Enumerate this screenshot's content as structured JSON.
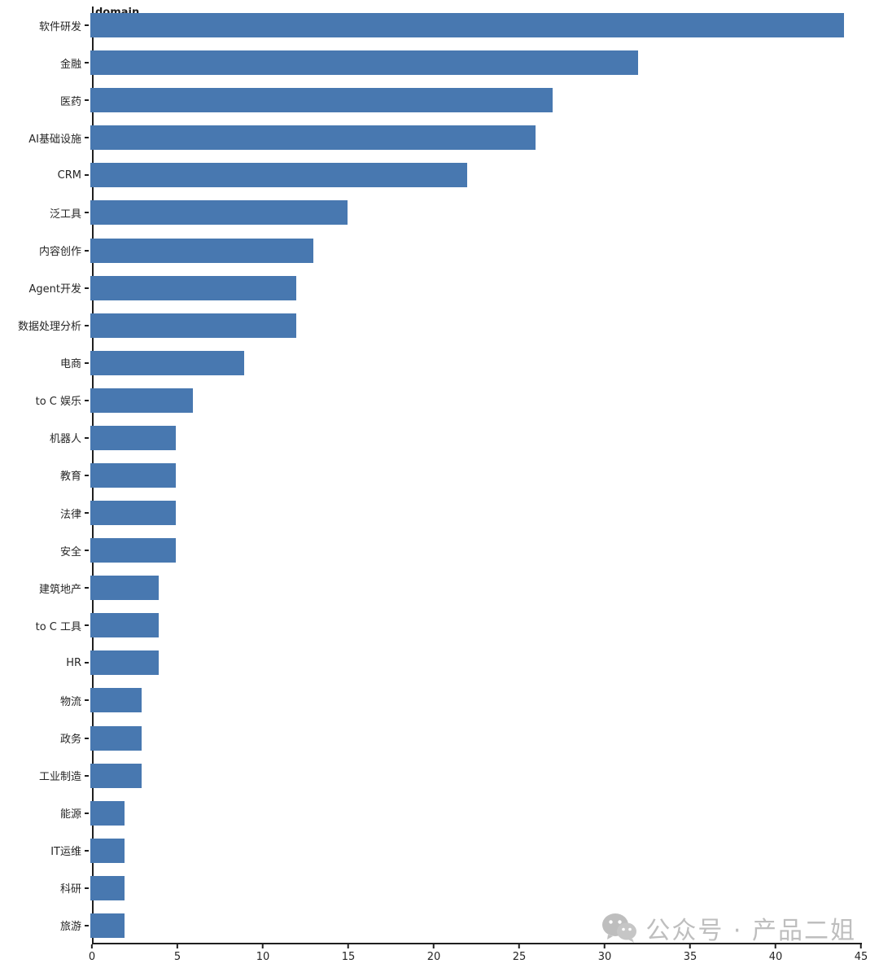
{
  "chart_data": {
    "type": "bar",
    "orientation": "horizontal",
    "title": "domain",
    "categories": [
      "软件研发",
      "金融",
      "医药",
      "AI基础设施",
      "CRM",
      "泛工具",
      "内容创作",
      "Agent开发",
      "数据处理分析",
      "电商",
      "to C 娱乐",
      "机器人",
      "教育",
      "法律",
      "安全",
      "建筑地产",
      "to C 工具",
      "HR",
      "物流",
      "政务",
      "工业制造",
      "能源",
      "IT运维",
      "科研",
      "旅游"
    ],
    "values": [
      44,
      32,
      27,
      26,
      22,
      15,
      13,
      12,
      12,
      9,
      6,
      5,
      5,
      5,
      5,
      4,
      4,
      4,
      3,
      3,
      3,
      2,
      2,
      2,
      2
    ],
    "xlabel": "",
    "ylabel": "",
    "xlim": [
      0,
      45
    ],
    "xticks": [
      0,
      5,
      10,
      15,
      20,
      25,
      30,
      35,
      40,
      45
    ],
    "bar_color": "#4878b0",
    "axis_color": "#1f1f1f",
    "grid": false,
    "legend": false
  },
  "watermark": {
    "text": "公众号 · 产品二姐",
    "icon": "wechat-icon",
    "color": "#bbbbbb"
  }
}
